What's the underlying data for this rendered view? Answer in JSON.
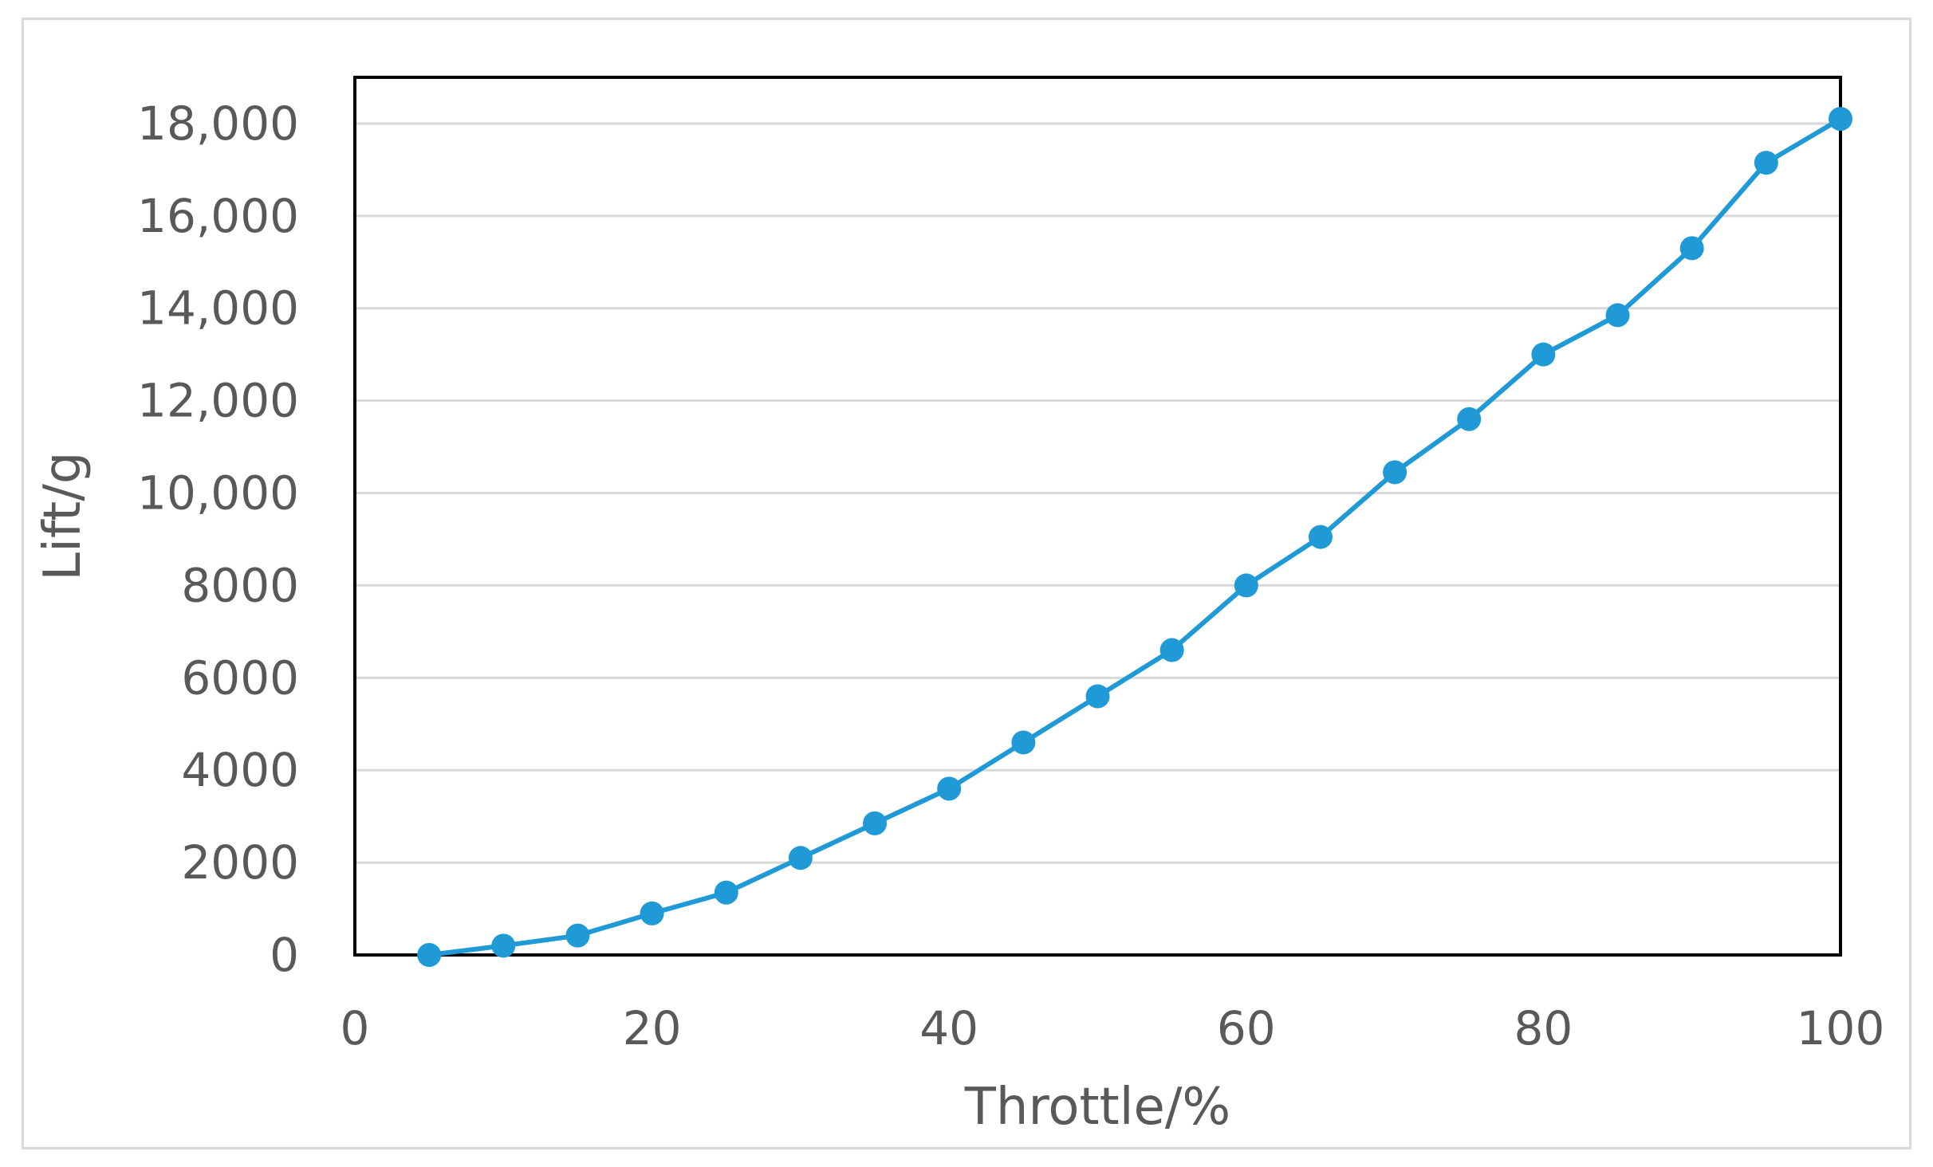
{
  "chart_data": {
    "type": "line",
    "title": "",
    "xlabel": "Throttle/%",
    "ylabel": "Lift/g",
    "xlim": [
      0,
      100
    ],
    "ylim": [
      0,
      19000
    ],
    "x_ticks": [
      0,
      20,
      40,
      60,
      80,
      100
    ],
    "x_tick_labels": [
      "0",
      "20",
      "40",
      "60",
      "80",
      "100"
    ],
    "y_ticks": [
      0,
      2000,
      4000,
      6000,
      8000,
      10000,
      12000,
      14000,
      16000,
      18000
    ],
    "y_tick_labels": [
      "0",
      "2000",
      "4000",
      "6000",
      "8000",
      "10,000",
      "12,000",
      "14,000",
      "16,000",
      "18,000"
    ],
    "grid": true,
    "legend": "none",
    "series": [
      {
        "color": "#1f9ad6",
        "marker": "circle",
        "x": [
          5,
          10,
          15,
          20,
          25,
          30,
          35,
          40,
          45,
          50,
          55,
          60,
          65,
          70,
          75,
          80,
          85,
          90,
          95,
          100
        ],
        "y": [
          0,
          200,
          420,
          900,
          1350,
          2100,
          2850,
          3600,
          4600,
          5600,
          6600,
          8000,
          9050,
          10450,
          11600,
          13000,
          13850,
          15300,
          17150,
          18100
        ]
      }
    ]
  }
}
